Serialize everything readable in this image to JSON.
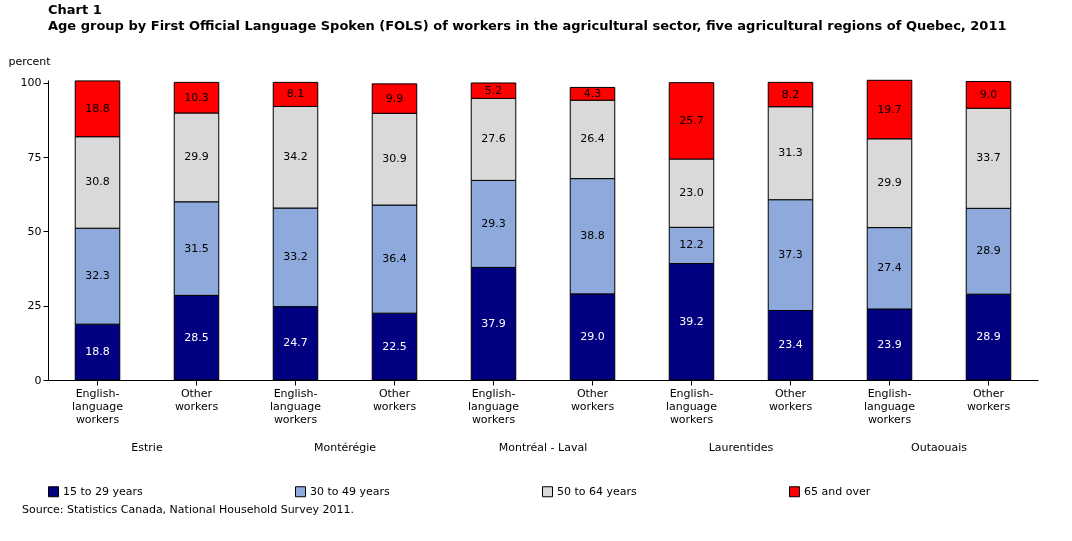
{
  "chart_data": {
    "type": "bar",
    "stacked": true,
    "title": "Chart 1",
    "subtitle": "Age group by First Official Language Spoken (FOLS) of workers in the agricultural  sector, five agricultural  regions of Quebec, 2011",
    "ylabel": "percent",
    "categories": [
      "English-language workers",
      "Other workers",
      "English-language workers",
      "Other workers",
      "English-language workers",
      "Other workers",
      "English-language workers",
      "Other workers",
      "English-language workers",
      "Other workers"
    ],
    "series": [
      {
        "name": "15 to 29 years",
        "color": "#000080",
        "values": [
          18.8,
          28.5,
          24.7,
          22.5,
          37.9,
          29.0,
          39.2,
          23.4,
          23.9,
          28.9
        ]
      },
      {
        "name": "30 to 49 years",
        "color": "#8eaadc",
        "values": [
          32.3,
          31.5,
          33.2,
          36.4,
          29.3,
          38.8,
          12.2,
          37.3,
          27.4,
          28.9
        ]
      },
      {
        "name": "50 to 64 years",
        "color": "#d9d9d9",
        "values": [
          30.8,
          29.9,
          34.2,
          30.9,
          27.6,
          26.4,
          23.0,
          31.3,
          29.9,
          33.7
        ]
      },
      {
        "name": "65 and over",
        "color": "#ff0000",
        "values": [
          18.8,
          10.3,
          8.1,
          9.9,
          5.2,
          4.3,
          25.7,
          8.2,
          19.7,
          9.0
        ]
      }
    ],
    "ylim": [
      0,
      101
    ],
    "yticks": [
      0,
      25,
      50,
      75,
      100
    ],
    "legend": "bottom",
    "value_labels": [
      [
        "18.8",
        "28.5",
        "24.7",
        "22.5",
        "37.9",
        "29.0",
        "39.2",
        "23.4",
        "23.9",
        "28.9"
      ],
      [
        "32.3",
        "31.5",
        "33.2",
        "36.4",
        "29.3",
        "38.8",
        "12.2",
        "37.3",
        "27.4",
        "28.9"
      ],
      [
        "30.8",
        "29.9",
        "34.2",
        "30.9",
        "27.6",
        "26.4",
        "23.0",
        "31.3",
        "29.9",
        "33.7"
      ],
      [
        "18.8",
        "10.3",
        "8.1",
        "9.9",
        "5.2",
        "4.3",
        "25.7",
        "8.2",
        "19.7",
        "9.0"
      ]
    ],
    "annotations": [
      "Estrie",
      "Montérégie",
      "Montréal - Laval",
      "Laurentides",
      "Outaouais",
      "Source: Statistics Canada, National Household Survey 2011."
    ]
  }
}
